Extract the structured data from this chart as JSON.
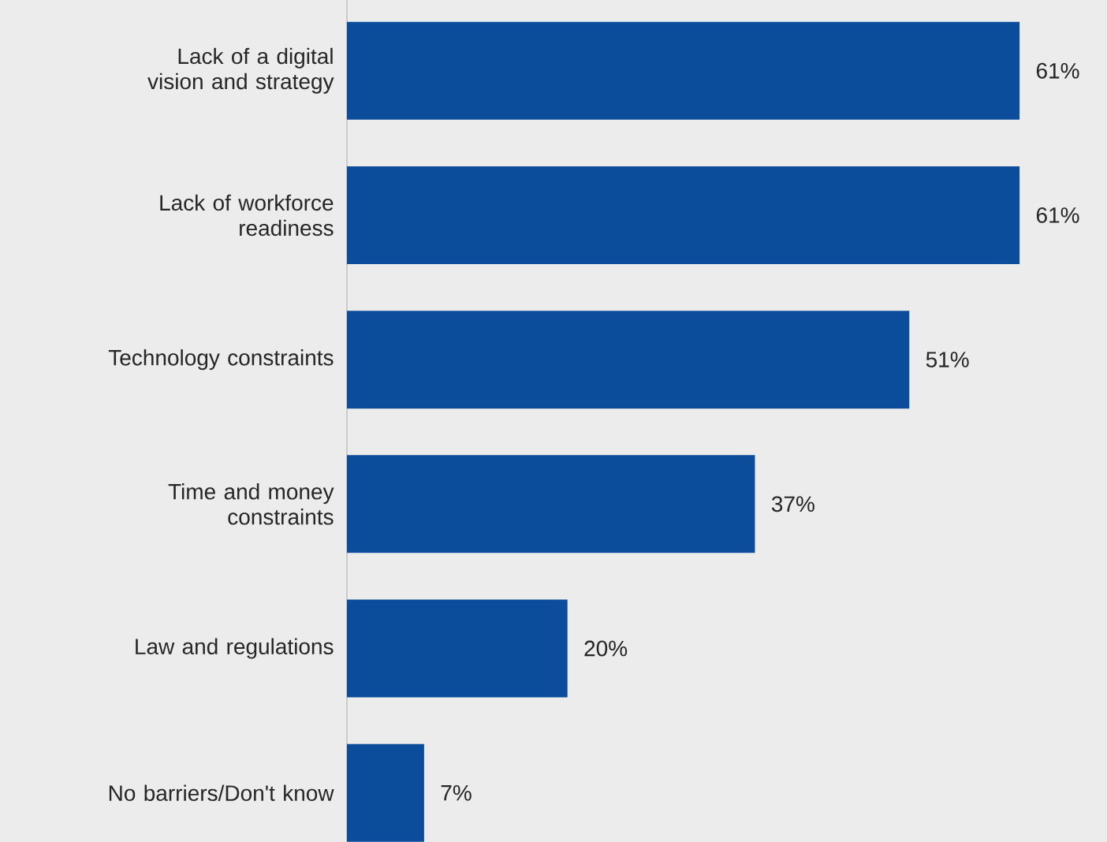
{
  "chart_data": {
    "type": "bar",
    "orientation": "horizontal",
    "categories": [
      "Lack of a digital vision and strategy",
      "Lack of workforce readiness",
      "Technology constraints",
      "Time and money constraints",
      "Law and regulations",
      "No barriers/Don't know"
    ],
    "values": [
      61,
      61,
      51,
      37,
      20,
      7
    ],
    "value_labels": [
      "61%",
      "61%",
      "51%",
      "37%",
      "20%",
      "7%"
    ],
    "color": "#0b4d9b"
  }
}
